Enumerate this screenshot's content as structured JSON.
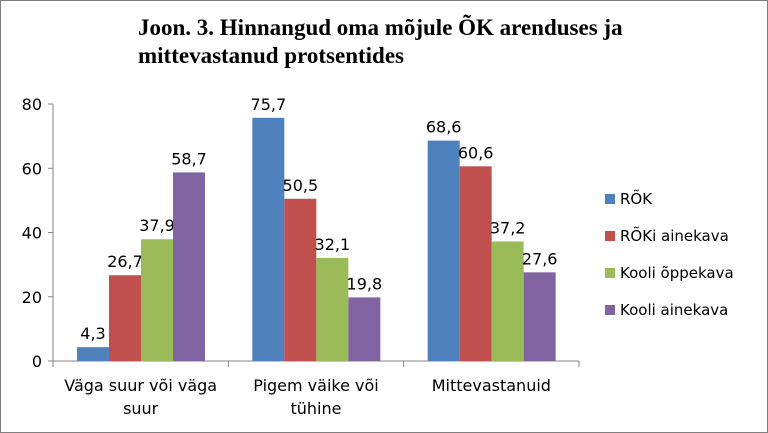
{
  "chart_data": {
    "type": "bar",
    "title_lines": [
      "Joon. 3. Hinnangud oma mõjule ÕK arenduses ja",
      "mittevastanud  protsentides"
    ],
    "categories": [
      [
        "Väga suur või väga",
        "suur"
      ],
      [
        "Pigem väike või",
        "tühine"
      ],
      [
        "Mittevastanuid"
      ]
    ],
    "series": [
      {
        "name": "RÕK",
        "color": "#4F81BD",
        "values": [
          4.3,
          75.7,
          68.6
        ],
        "labels": [
          "4,3",
          "75,7",
          "68,6"
        ]
      },
      {
        "name": "RÕKi ainekava",
        "color": "#C0504D",
        "values": [
          26.7,
          50.5,
          60.6
        ],
        "labels": [
          "26,7",
          "50,5",
          "60,6"
        ]
      },
      {
        "name": "Kooli õppekava",
        "color": "#9BBB59",
        "values": [
          37.9,
          32.1,
          37.2
        ],
        "labels": [
          "37,9",
          "32,1",
          "37,2"
        ]
      },
      {
        "name": "Kooli ainekava",
        "color": "#8064A2",
        "values": [
          58.7,
          19.8,
          27.6
        ],
        "labels": [
          "58,7",
          "19,8",
          "27,6"
        ]
      }
    ],
    "ylim": [
      0,
      80
    ],
    "yticks": [
      "0",
      "20",
      "40",
      "60",
      "80"
    ],
    "legend_position": "right",
    "grid": false
  }
}
